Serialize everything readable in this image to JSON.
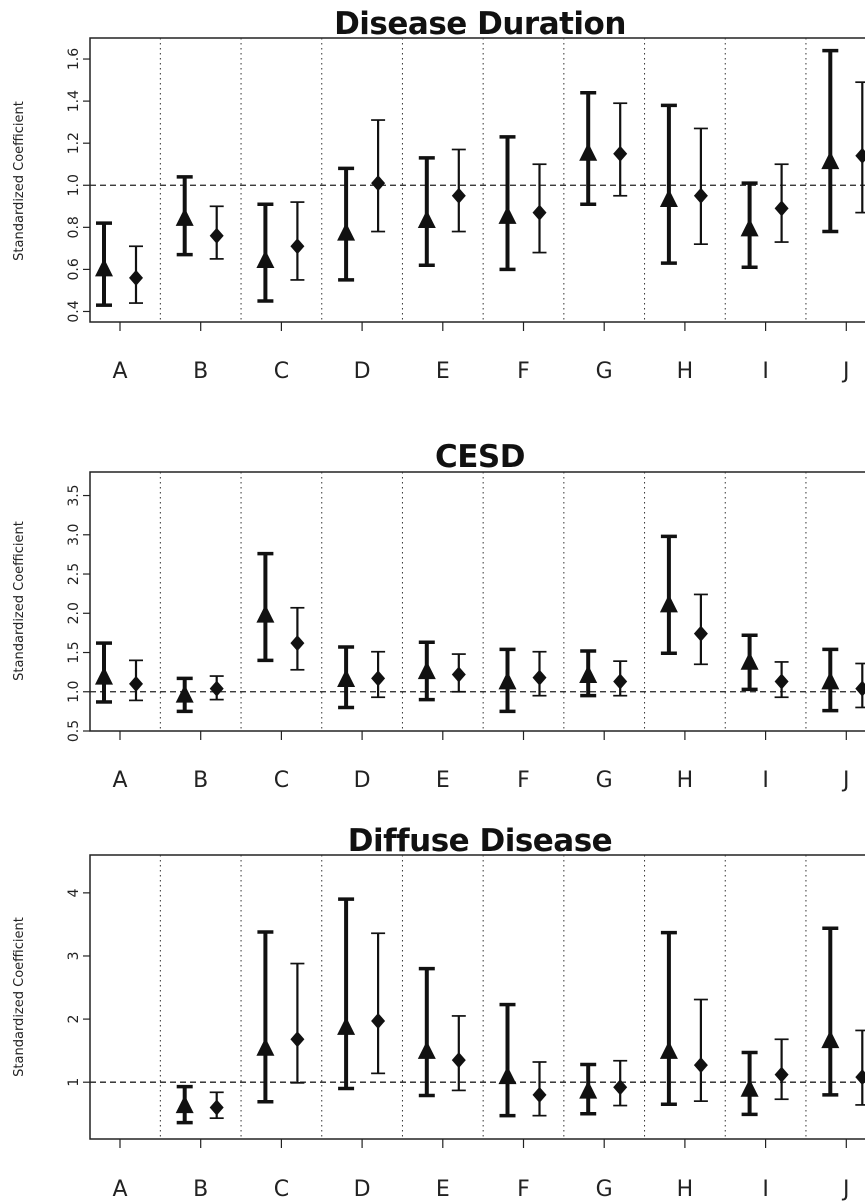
{
  "chart_data": [
    {
      "type": "scatter",
      "title": "Disease Duration",
      "ylabel": "Standardized Coefficient",
      "categories": [
        "A",
        "B",
        "C",
        "D",
        "E",
        "F",
        "G",
        "H",
        "I",
        "J"
      ],
      "ylim": [
        0.35,
        1.7
      ],
      "yticks": [
        "0.4",
        "0.6",
        "0.8",
        "1.0",
        "1.2",
        "1.4",
        "1.6"
      ],
      "reference_line": 1.0,
      "series": [
        {
          "marker": "triangle",
          "values": [
            0.6,
            0.84,
            0.64,
            0.77,
            0.83,
            0.85,
            1.15,
            0.93,
            0.79,
            1.11
          ],
          "lower": [
            0.43,
            0.67,
            0.45,
            0.55,
            0.62,
            0.6,
            0.91,
            0.63,
            0.61,
            0.78
          ],
          "upper": [
            0.82,
            1.04,
            0.91,
            1.08,
            1.13,
            1.23,
            1.44,
            1.38,
            1.01,
            1.64
          ]
        },
        {
          "marker": "diamond",
          "values": [
            0.56,
            0.76,
            0.71,
            1.01,
            0.95,
            0.87,
            1.15,
            0.95,
            0.89,
            1.14
          ],
          "lower": [
            0.44,
            0.65,
            0.55,
            0.78,
            0.78,
            0.68,
            0.95,
            0.72,
            0.73,
            0.87
          ],
          "upper": [
            0.71,
            0.9,
            0.92,
            1.31,
            1.17,
            1.1,
            1.39,
            1.27,
            1.1,
            1.49
          ]
        }
      ]
    },
    {
      "type": "scatter",
      "title": "CESD",
      "ylabel": "Standardized Coefficient",
      "categories": [
        "A",
        "B",
        "C",
        "D",
        "E",
        "F",
        "G",
        "H",
        "I",
        "J"
      ],
      "ylim": [
        0.5,
        3.8
      ],
      "yticks": [
        "0.5",
        "1.0",
        "1.5",
        "2.0",
        "2.5",
        "3.0",
        "3.5"
      ],
      "reference_line": 1.0,
      "series": [
        {
          "marker": "triangle",
          "values": [
            1.18,
            0.95,
            1.97,
            1.15,
            1.25,
            1.12,
            1.2,
            2.1,
            1.37,
            1.12
          ],
          "lower": [
            0.87,
            0.75,
            1.4,
            0.8,
            0.9,
            0.75,
            0.95,
            1.49,
            1.03,
            0.76
          ],
          "upper": [
            1.62,
            1.17,
            2.76,
            1.57,
            1.63,
            1.54,
            1.52,
            2.98,
            1.72,
            1.54
          ]
        },
        {
          "marker": "diamond",
          "values": [
            1.1,
            1.04,
            1.62,
            1.17,
            1.22,
            1.18,
            1.13,
            1.74,
            1.13,
            1.04
          ],
          "lower": [
            0.89,
            0.9,
            1.28,
            0.93,
            1.0,
            0.95,
            0.95,
            1.35,
            0.93,
            0.8
          ],
          "upper": [
            1.4,
            1.2,
            2.07,
            1.51,
            1.48,
            1.51,
            1.39,
            2.24,
            1.38,
            1.36
          ]
        }
      ]
    },
    {
      "type": "scatter",
      "title": "Diffuse Disease",
      "ylabel": "Standardized Coefficient",
      "categories": [
        "A",
        "B",
        "C",
        "D",
        "E",
        "F",
        "G",
        "H",
        "I",
        "J"
      ],
      "ylim": [
        0.1,
        4.6
      ],
      "yticks": [
        "1",
        "2",
        "3",
        "4"
      ],
      "reference_line": 1.0,
      "series": [
        {
          "marker": "triangle",
          "values": [
            null,
            0.62,
            1.53,
            1.86,
            1.48,
            1.08,
            0.85,
            1.48,
            0.88,
            1.65
          ],
          "lower": [
            null,
            0.36,
            0.69,
            0.9,
            0.79,
            0.47,
            0.5,
            0.65,
            0.49,
            0.8
          ],
          "upper": [
            null,
            0.93,
            3.38,
            3.9,
            2.8,
            2.23,
            1.28,
            3.37,
            1.47,
            3.44
          ]
        },
        {
          "marker": "diamond",
          "values": [
            null,
            0.6,
            1.68,
            1.97,
            1.35,
            0.8,
            0.92,
            1.27,
            1.12,
            1.08
          ],
          "lower": [
            null,
            0.43,
            0.99,
            1.14,
            0.87,
            0.47,
            0.63,
            0.7,
            0.73,
            0.64
          ],
          "upper": [
            null,
            0.84,
            2.88,
            3.36,
            2.05,
            1.32,
            1.34,
            2.31,
            1.68,
            1.82
          ]
        }
      ]
    }
  ]
}
